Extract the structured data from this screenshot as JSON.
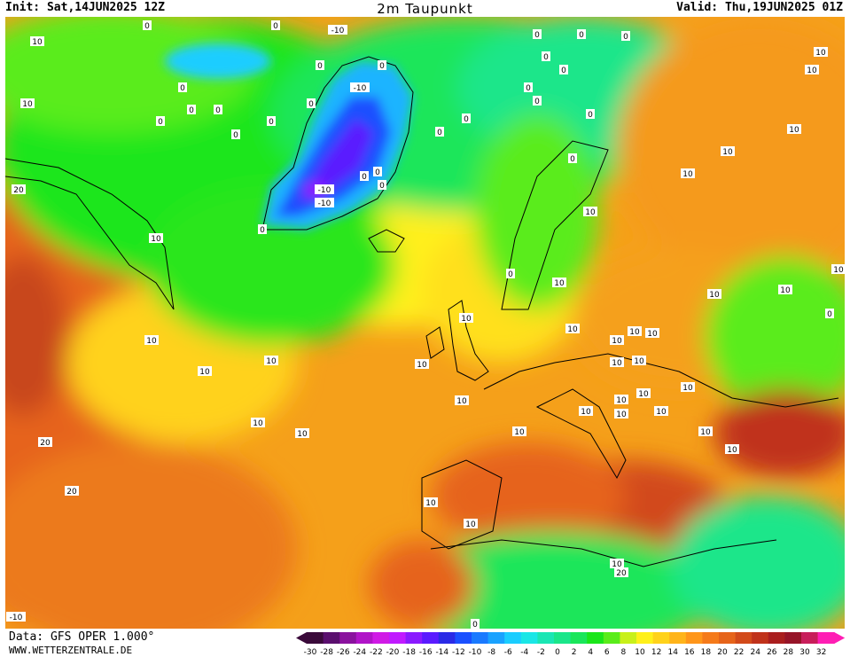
{
  "header": {
    "init": "Init: Sat,14JUN2025 12Z",
    "title": "2m Taupunkt",
    "valid": "Valid: Thu,19JUN2025 01Z"
  },
  "footer": {
    "source": "Data: GFS OPER 1.000°",
    "site": "WWW.WETTERZENTRALE.DE"
  },
  "legend": {
    "ticks": [
      "-30",
      "-28",
      "-26",
      "-24",
      "-22",
      "-20",
      "-18",
      "-16",
      "-14",
      "-12",
      "-10",
      "-8",
      "-6",
      "-4",
      "-2",
      "0",
      "2",
      "4",
      "6",
      "8",
      "10",
      "12",
      "14",
      "16",
      "18",
      "20",
      "22",
      "24",
      "26",
      "28",
      "30",
      "32"
    ],
    "colors": [
      "#3a0a3a",
      "#5a0f6e",
      "#8a129e",
      "#b014c8",
      "#d01ae6",
      "#c01aff",
      "#8a1aff",
      "#5a1aff",
      "#2a2ae6",
      "#1a50ff",
      "#1a7aff",
      "#1aa2ff",
      "#1acdff",
      "#1ae6e6",
      "#1ae6b4",
      "#1ae68a",
      "#1ae65a",
      "#1ae61a",
      "#5aec1a",
      "#c8f01a",
      "#fff01a",
      "#ffd21a",
      "#ffb41a",
      "#ff961a",
      "#f57a1a",
      "#e6641a",
      "#d24a1a",
      "#c0321a",
      "#aa1e1e",
      "#961428",
      "#c81e5a",
      "#ff1eb4"
    ]
  },
  "contour_labels": [
    "10",
    "0",
    "-10",
    "-10",
    "-10",
    "0",
    "0",
    "0",
    "0",
    "0",
    "0",
    "0",
    "0",
    "0",
    "0",
    "0",
    "0",
    "0",
    "0",
    "0",
    "0",
    "0",
    "0",
    "0",
    "0",
    "0",
    "0",
    "0",
    "0",
    "0",
    "0",
    "0",
    "0",
    "10",
    "10",
    "10",
    "10",
    "10",
    "10",
    "10",
    "10",
    "10",
    "10",
    "10",
    "10",
    "10",
    "10",
    "10",
    "10",
    "10",
    "10",
    "10",
    "10",
    "10",
    "10",
    "10",
    "10",
    "10",
    "10",
    "10",
    "10",
    "10",
    "10",
    "10",
    "10",
    "10",
    "10",
    "10",
    "10",
    "10",
    "10",
    "20",
    "20",
    "20",
    "20",
    "-10",
    "-10"
  ]
}
